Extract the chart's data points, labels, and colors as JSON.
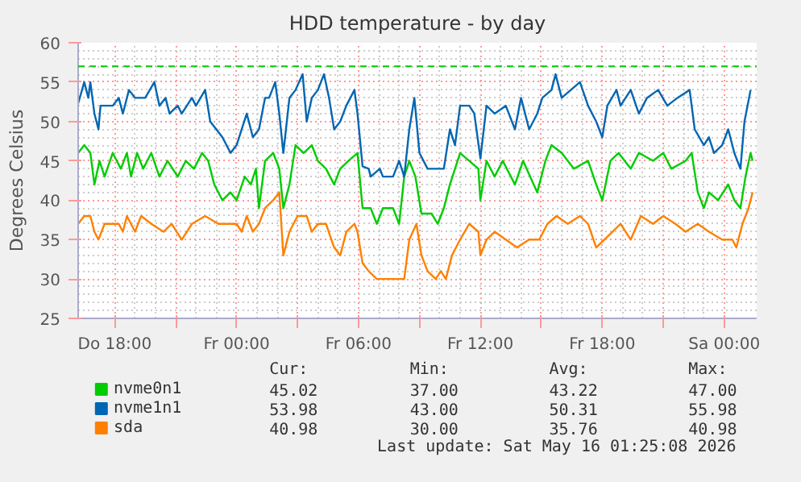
{
  "chart_data": {
    "type": "line",
    "title": "HDD temperature - by day",
    "ylabel": "Degrees Celsius",
    "xlim": [
      "2026-05-14T16:12",
      "2026-05-16T01:36"
    ],
    "ylim": [
      25,
      60
    ],
    "xticks": [
      {
        "value": "2026-05-14T18:00",
        "label": "Do 18:00"
      },
      {
        "value": "2026-05-14T21:00",
        "label": null
      },
      {
        "value": "2026-05-15T00:00",
        "label": "Fr 00:00"
      },
      {
        "value": "2026-05-15T03:00",
        "label": null
      },
      {
        "value": "2026-05-15T06:00",
        "label": "Fr 06:00"
      },
      {
        "value": "2026-05-15T09:00",
        "label": null
      },
      {
        "value": "2026-05-15T12:00",
        "label": "Fr 12:00"
      },
      {
        "value": "2026-05-15T15:00",
        "label": null
      },
      {
        "value": "2026-05-15T18:00",
        "label": "Fr 18:00"
      },
      {
        "value": "2026-05-15T21:00",
        "label": null
      },
      {
        "value": "2026-05-16T00:00",
        "label": "Sa 00:00"
      }
    ],
    "yticks": [
      25,
      30,
      35,
      40,
      45,
      50,
      55,
      60
    ],
    "grid": true,
    "legend": "bottom",
    "marker": "none",
    "line_style": "solid",
    "ref_lines": [
      {
        "axis": "y",
        "value": 57,
        "label": null,
        "color": "#00cc00",
        "line_style": "dashed"
      }
    ],
    "series": [
      {
        "name": "nvme0n1",
        "color": "#00cc00",
        "x": [
          "2026-05-14T16:12",
          "2026-05-14T16:30",
          "2026-05-14T16:48",
          "2026-05-14T17:00",
          "2026-05-14T17:15",
          "2026-05-14T17:30",
          "2026-05-14T17:54",
          "2026-05-14T18:18",
          "2026-05-14T18:36",
          "2026-05-14T18:48",
          "2026-05-14T19:06",
          "2026-05-14T19:24",
          "2026-05-14T19:48",
          "2026-05-14T20:12",
          "2026-05-14T20:36",
          "2026-05-14T21:06",
          "2026-05-14T21:30",
          "2026-05-14T21:54",
          "2026-05-14T22:18",
          "2026-05-14T22:36",
          "2026-05-14T22:54",
          "2026-05-14T23:18",
          "2026-05-14T23:42",
          "2026-05-15T00:00",
          "2026-05-15T00:24",
          "2026-05-15T00:42",
          "2026-05-15T00:57",
          "2026-05-15T01:06",
          "2026-05-15T01:24",
          "2026-05-15T01:48",
          "2026-05-15T02:06",
          "2026-05-15T02:18",
          "2026-05-15T02:36",
          "2026-05-15T02:54",
          "2026-05-15T03:18",
          "2026-05-15T03:42",
          "2026-05-15T04:00",
          "2026-05-15T04:24",
          "2026-05-15T04:48",
          "2026-05-15T05:06",
          "2026-05-15T05:30",
          "2026-05-15T05:57",
          "2026-05-15T06:12",
          "2026-05-15T06:36",
          "2026-05-15T06:54",
          "2026-05-15T07:12",
          "2026-05-15T07:42",
          "2026-05-15T08:00",
          "2026-05-15T08:15",
          "2026-05-15T08:30",
          "2026-05-15T08:48",
          "2026-05-15T09:06",
          "2026-05-15T09:36",
          "2026-05-15T09:54",
          "2026-05-15T10:12",
          "2026-05-15T10:30",
          "2026-05-15T11:00",
          "2026-05-15T11:27",
          "2026-05-15T11:54",
          "2026-05-15T12:00",
          "2026-05-15T12:18",
          "2026-05-15T12:42",
          "2026-05-15T13:06",
          "2026-05-15T13:42",
          "2026-05-15T14:06",
          "2026-05-15T14:48",
          "2026-05-15T15:12",
          "2026-05-15T15:30",
          "2026-05-15T16:00",
          "2026-05-15T16:36",
          "2026-05-15T17:18",
          "2026-05-15T17:42",
          "2026-05-15T18:00",
          "2026-05-15T18:24",
          "2026-05-15T18:48",
          "2026-05-15T19:24",
          "2026-05-15T19:48",
          "2026-05-15T20:30",
          "2026-05-15T21:00",
          "2026-05-15T21:24",
          "2026-05-15T22:06",
          "2026-05-15T22:24",
          "2026-05-15T22:42",
          "2026-05-15T23:00",
          "2026-05-15T23:15",
          "2026-05-15T23:42",
          "2026-05-16T00:12",
          "2026-05-16T00:30",
          "2026-05-16T00:48",
          "2026-05-16T01:03",
          "2026-05-16T01:18",
          "2026-05-16T01:24"
        ],
        "values": [
          46,
          47,
          46,
          42,
          45,
          43,
          46,
          44,
          46,
          43,
          46,
          44,
          46,
          43,
          45,
          43,
          45,
          44,
          46,
          45,
          42,
          40,
          41,
          40,
          43,
          42,
          44,
          39,
          45,
          46,
          44,
          39,
          42,
          47,
          46,
          47,
          45,
          44,
          42,
          44,
          45,
          46,
          39,
          39,
          37,
          39,
          39,
          37,
          43,
          45,
          43,
          38.3,
          38.3,
          37,
          39,
          42,
          46,
          45,
          44,
          40,
          45,
          43,
          45,
          42,
          45,
          41,
          45,
          47,
          46,
          44,
          45,
          42,
          40,
          45,
          46,
          44,
          46,
          45,
          46,
          44,
          45,
          46,
          41,
          39,
          41,
          40,
          42,
          40,
          39,
          43,
          46,
          45
        ]
      },
      {
        "name": "nvme1n1",
        "color": "#0066b3",
        "x": [
          "2026-05-14T16:12",
          "2026-05-14T16:30",
          "2026-05-14T16:42",
          "2026-05-14T16:48",
          "2026-05-14T17:00",
          "2026-05-14T17:12",
          "2026-05-14T17:18",
          "2026-05-14T17:54",
          "2026-05-14T18:12",
          "2026-05-14T18:24",
          "2026-05-14T18:42",
          "2026-05-14T19:00",
          "2026-05-14T19:30",
          "2026-05-14T19:57",
          "2026-05-14T20:12",
          "2026-05-14T20:30",
          "2026-05-14T20:42",
          "2026-05-14T21:06",
          "2026-05-14T21:18",
          "2026-05-14T21:48",
          "2026-05-14T22:00",
          "2026-05-14T22:27",
          "2026-05-14T22:42",
          "2026-05-14T23:00",
          "2026-05-14T23:18",
          "2026-05-14T23:42",
          "2026-05-15T00:00",
          "2026-05-15T00:15",
          "2026-05-15T00:30",
          "2026-05-15T00:48",
          "2026-05-15T01:06",
          "2026-05-15T01:24",
          "2026-05-15T01:36",
          "2026-05-15T01:54",
          "2026-05-15T02:06",
          "2026-05-15T02:18",
          "2026-05-15T02:36",
          "2026-05-15T02:54",
          "2026-05-15T03:15",
          "2026-05-15T03:27",
          "2026-05-15T03:42",
          "2026-05-15T04:00",
          "2026-05-15T04:18",
          "2026-05-15T04:33",
          "2026-05-15T04:48",
          "2026-05-15T05:06",
          "2026-05-15T05:24",
          "2026-05-15T05:48",
          "2026-05-15T05:57",
          "2026-05-15T06:12",
          "2026-05-15T06:30",
          "2026-05-15T06:36",
          "2026-05-15T07:03",
          "2026-05-15T07:12",
          "2026-05-15T07:42",
          "2026-05-15T08:00",
          "2026-05-15T08:15",
          "2026-05-15T08:30",
          "2026-05-15T08:45",
          "2026-05-15T09:00",
          "2026-05-15T09:24",
          "2026-05-15T09:48",
          "2026-05-15T10:12",
          "2026-05-15T10:30",
          "2026-05-15T10:45",
          "2026-05-15T11:00",
          "2026-05-15T11:27",
          "2026-05-15T11:42",
          "2026-05-15T12:00",
          "2026-05-15T12:18",
          "2026-05-15T12:42",
          "2026-05-15T13:15",
          "2026-05-15T13:42",
          "2026-05-15T14:00",
          "2026-05-15T14:24",
          "2026-05-15T14:48",
          "2026-05-15T15:03",
          "2026-05-15T15:30",
          "2026-05-15T15:42",
          "2026-05-15T16:00",
          "2026-05-15T16:27",
          "2026-05-15T16:54",
          "2026-05-15T17:18",
          "2026-05-15T17:42",
          "2026-05-15T18:00",
          "2026-05-15T18:15",
          "2026-05-15T18:42",
          "2026-05-15T18:54",
          "2026-05-15T19:24",
          "2026-05-15T19:48",
          "2026-05-15T20:12",
          "2026-05-15T20:45",
          "2026-05-15T21:12",
          "2026-05-15T21:42",
          "2026-05-15T22:18",
          "2026-05-15T22:33",
          "2026-05-15T23:00",
          "2026-05-15T23:15",
          "2026-05-15T23:30",
          "2026-05-15T23:54",
          "2026-05-16T00:12",
          "2026-05-16T00:30",
          "2026-05-16T00:48",
          "2026-05-16T01:00",
          "2026-05-16T01:18"
        ],
        "values": [
          52.3,
          55,
          53,
          55,
          51,
          49,
          52,
          52,
          53,
          51,
          54,
          53,
          53,
          55,
          52,
          53,
          51,
          52,
          51,
          53,
          52,
          54,
          50,
          49,
          48,
          46,
          47,
          49,
          51,
          48,
          49,
          53,
          53,
          55,
          51,
          46,
          53,
          54,
          56,
          50,
          53,
          54,
          56,
          53,
          49,
          50,
          52,
          54,
          51,
          44.3,
          44,
          43,
          44,
          43,
          43,
          45,
          43,
          49,
          53,
          46,
          44,
          44,
          44,
          49,
          47,
          52,
          52,
          51,
          45.3,
          52,
          51,
          52,
          49,
          53,
          49,
          51,
          53,
          54,
          56,
          53,
          54,
          55,
          52,
          50,
          48,
          52,
          54,
          52,
          54,
          51,
          53,
          54,
          52,
          53,
          54,
          49,
          47,
          48,
          46,
          47,
          49,
          46,
          44,
          50,
          54
        ]
      },
      {
        "name": "sda",
        "color": "#ff8000",
        "x": [
          "2026-05-14T16:12",
          "2026-05-14T16:30",
          "2026-05-14T16:48",
          "2026-05-14T17:00",
          "2026-05-14T17:12",
          "2026-05-14T17:30",
          "2026-05-14T18:12",
          "2026-05-14T18:24",
          "2026-05-14T18:36",
          "2026-05-14T19:00",
          "2026-05-14T19:18",
          "2026-05-14T19:48",
          "2026-05-14T20:24",
          "2026-05-14T20:48",
          "2026-05-14T21:18",
          "2026-05-14T21:48",
          "2026-05-14T22:27",
          "2026-05-14T23:06",
          "2026-05-15T00:00",
          "2026-05-15T00:15",
          "2026-05-15T00:30",
          "2026-05-15T00:48",
          "2026-05-15T01:06",
          "2026-05-15T01:24",
          "2026-05-15T01:48",
          "2026-05-15T02:06",
          "2026-05-15T02:18",
          "2026-05-15T02:36",
          "2026-05-15T03:00",
          "2026-05-15T03:27",
          "2026-05-15T03:42",
          "2026-05-15T04:00",
          "2026-05-15T04:24",
          "2026-05-15T04:48",
          "2026-05-15T05:06",
          "2026-05-15T05:24",
          "2026-05-15T05:48",
          "2026-05-15T05:57",
          "2026-05-15T06:12",
          "2026-05-15T06:30",
          "2026-05-15T06:54",
          "2026-05-15T07:30",
          "2026-05-15T08:15",
          "2026-05-15T08:30",
          "2026-05-15T08:51",
          "2026-05-15T09:06",
          "2026-05-15T09:24",
          "2026-05-15T09:48",
          "2026-05-15T10:03",
          "2026-05-15T10:18",
          "2026-05-15T10:36",
          "2026-05-15T11:00",
          "2026-05-15T11:27",
          "2026-05-15T11:54",
          "2026-05-15T12:00",
          "2026-05-15T12:18",
          "2026-05-15T12:42",
          "2026-05-15T13:15",
          "2026-05-15T13:48",
          "2026-05-15T14:24",
          "2026-05-15T14:54",
          "2026-05-15T15:18",
          "2026-05-15T15:45",
          "2026-05-15T16:18",
          "2026-05-15T16:54",
          "2026-05-15T17:18",
          "2026-05-15T17:42",
          "2026-05-15T18:06",
          "2026-05-15T18:30",
          "2026-05-15T18:54",
          "2026-05-15T19:24",
          "2026-05-15T19:54",
          "2026-05-15T20:30",
          "2026-05-15T21:00",
          "2026-05-15T21:36",
          "2026-05-15T22:06",
          "2026-05-15T22:42",
          "2026-05-15T23:15",
          "2026-05-15T23:54",
          "2026-05-16T00:24",
          "2026-05-16T00:36",
          "2026-05-16T00:54",
          "2026-05-16T01:12",
          "2026-05-16T01:24"
        ],
        "values": [
          37,
          38,
          38,
          36,
          35,
          37,
          37,
          36,
          38,
          36,
          38,
          37,
          36,
          37,
          35,
          37,
          38,
          37,
          37,
          36,
          38,
          36,
          37,
          39,
          40,
          41,
          33,
          36,
          38,
          38,
          36,
          37,
          37,
          34,
          33,
          36,
          37,
          36,
          32,
          31,
          30,
          30,
          30,
          35,
          37,
          33,
          31,
          30,
          31,
          30,
          33,
          35,
          37,
          36,
          33,
          35,
          36,
          35,
          34,
          35,
          35,
          37,
          38,
          37,
          38,
          37,
          34,
          35,
          36,
          37,
          35,
          38,
          37,
          38,
          37,
          36,
          37,
          36,
          35,
          35,
          34,
          37,
          39,
          41
        ]
      }
    ],
    "annotations": [
      "Cur:",
      "Min:",
      "Avg:",
      "Max:",
      "45.02",
      "37.00",
      "43.22",
      "47.00",
      "53.98",
      "43.00",
      "50.31",
      "55.98",
      "40.98",
      "30.00",
      "35.76",
      "40.98",
      "Last update: Sat May 16 01:25:08 2026"
    ]
  }
}
